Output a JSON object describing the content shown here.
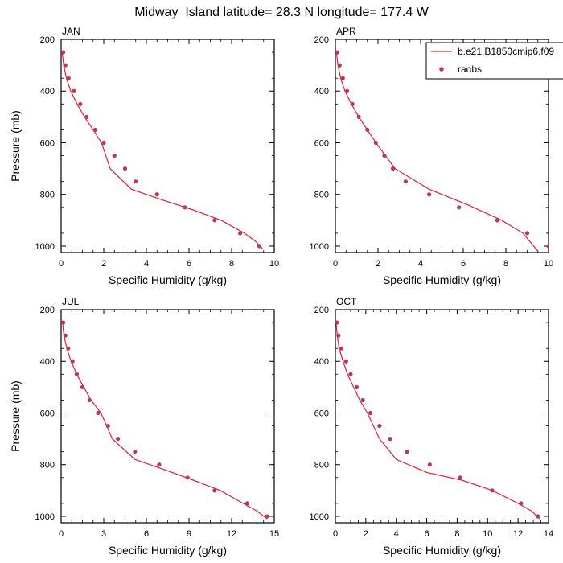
{
  "title": "Midway_Island  latitude= 28.3 N longitude= 177.4 W",
  "colors": {
    "model": "#e8202a",
    "obs": "#c0365a",
    "axis": "#000000"
  },
  "legend": {
    "model_label": "b.e21.B1850cmip6.f09",
    "obs_label": "raobs"
  },
  "chart_data": [
    {
      "type": "line",
      "panel_label": "JAN",
      "xlabel": "Specific Humidity (g/kg)",
      "ylabel": "Pressure (mb)",
      "xlim": [
        0,
        10
      ],
      "ylim": [
        1025,
        200
      ],
      "x_ticks": [
        0,
        2,
        4,
        6,
        8,
        10
      ],
      "y_ticks": [
        200,
        400,
        600,
        800,
        1000
      ],
      "series": [
        {
          "name": "b.e21.B1850cmip6.f09",
          "kind": "line",
          "x": [
            0.05,
            0.12,
            0.25,
            0.45,
            0.75,
            1.1,
            1.5,
            1.9,
            2.3,
            3.3,
            4.7,
            6.2,
            7.5,
            8.6,
            9.1,
            9.45
          ],
          "y": [
            250,
            300,
            350,
            400,
            450,
            500,
            550,
            600,
            700,
            780,
            820,
            860,
            900,
            950,
            980,
            1010
          ]
        },
        {
          "name": "raobs",
          "kind": "scatter",
          "x": [
            0.1,
            0.2,
            0.35,
            0.6,
            0.9,
            1.2,
            1.6,
            2.0,
            2.5,
            3.0,
            3.5,
            4.5,
            5.8,
            7.2,
            8.4,
            9.3
          ],
          "y": [
            250,
            300,
            350,
            400,
            450,
            500,
            550,
            600,
            650,
            700,
            750,
            800,
            850,
            900,
            950,
            1000
          ]
        }
      ]
    },
    {
      "type": "line",
      "panel_label": "APR",
      "xlabel": "Specific Humidity (g/kg)",
      "ylabel": "Pressure (mb)",
      "xlim": [
        0,
        10
      ],
      "ylim": [
        1025,
        200
      ],
      "x_ticks": [
        0,
        2,
        4,
        6,
        8,
        10
      ],
      "y_ticks": [
        200,
        400,
        600,
        800,
        1000
      ],
      "series": [
        {
          "name": "b.e21.B1850cmip6.f09",
          "kind": "line",
          "x": [
            0.05,
            0.12,
            0.25,
            0.45,
            0.75,
            1.1,
            1.5,
            1.9,
            2.8,
            4.4,
            6.2,
            7.8,
            8.8,
            9.5
          ],
          "y": [
            250,
            300,
            350,
            400,
            450,
            500,
            550,
            600,
            700,
            780,
            840,
            900,
            950,
            1020
          ]
        },
        {
          "name": "raobs",
          "kind": "scatter",
          "x": [
            0.1,
            0.2,
            0.35,
            0.55,
            0.8,
            1.1,
            1.5,
            1.9,
            2.3,
            2.7,
            3.3,
            4.4,
            5.8,
            7.6,
            9.0,
            10.0
          ],
          "y": [
            250,
            300,
            350,
            400,
            450,
            500,
            550,
            600,
            650,
            700,
            750,
            800,
            850,
            900,
            950,
            1000
          ]
        }
      ]
    },
    {
      "type": "line",
      "panel_label": "JUL",
      "xlabel": "Specific Humidity (g/kg)",
      "ylabel": "Pressure (mb)",
      "xlim": [
        0,
        15
      ],
      "ylim": [
        1025,
        200
      ],
      "x_ticks": [
        0,
        3,
        6,
        9,
        12,
        15
      ],
      "y_ticks": [
        200,
        400,
        600,
        800,
        1000
      ],
      "series": [
        {
          "name": "b.e21.B1850cmip6.f09",
          "kind": "line",
          "x": [
            0.1,
            0.2,
            0.4,
            0.7,
            1.1,
            1.6,
            2.1,
            2.8,
            3.6,
            5.2,
            7.3,
            9.3,
            11.2,
            12.8,
            13.8,
            14.5
          ],
          "y": [
            250,
            300,
            350,
            400,
            450,
            500,
            550,
            600,
            700,
            780,
            820,
            860,
            900,
            950,
            980,
            1010
          ]
        },
        {
          "name": "raobs",
          "kind": "scatter",
          "x": [
            0.15,
            0.3,
            0.5,
            0.8,
            1.1,
            1.5,
            2.0,
            2.6,
            3.3,
            4.0,
            5.2,
            6.9,
            8.9,
            10.8,
            13.1,
            14.5
          ],
          "y": [
            250,
            300,
            350,
            400,
            450,
            500,
            550,
            600,
            650,
            700,
            750,
            800,
            850,
            900,
            950,
            1000
          ]
        }
      ]
    },
    {
      "type": "line",
      "panel_label": "OCT",
      "xlabel": "Specific Humidity (g/kg)",
      "ylabel": "Pressure (mb)",
      "xlim": [
        0,
        14
      ],
      "ylim": [
        1025,
        200
      ],
      "x_ticks": [
        0,
        2,
        4,
        6,
        8,
        10,
        12,
        14
      ],
      "y_ticks": [
        200,
        400,
        600,
        800,
        1000
      ],
      "series": [
        {
          "name": "b.e21.B1850cmip6.f09",
          "kind": "line",
          "x": [
            0.05,
            0.12,
            0.25,
            0.5,
            0.8,
            1.2,
            1.6,
            2.1,
            2.9,
            4.0,
            6.0,
            8.3,
            10.3,
            12.0,
            12.9,
            13.4
          ],
          "y": [
            250,
            300,
            350,
            400,
            450,
            500,
            550,
            600,
            700,
            780,
            830,
            860,
            900,
            950,
            980,
            1010
          ]
        },
        {
          "name": "raobs",
          "kind": "scatter",
          "x": [
            0.1,
            0.2,
            0.4,
            0.7,
            1.0,
            1.4,
            1.8,
            2.3,
            2.9,
            3.6,
            4.7,
            6.2,
            8.2,
            10.3,
            12.2,
            13.3
          ],
          "y": [
            250,
            300,
            350,
            400,
            450,
            500,
            550,
            600,
            650,
            700,
            750,
            800,
            850,
            900,
            950,
            1000
          ]
        }
      ]
    }
  ]
}
